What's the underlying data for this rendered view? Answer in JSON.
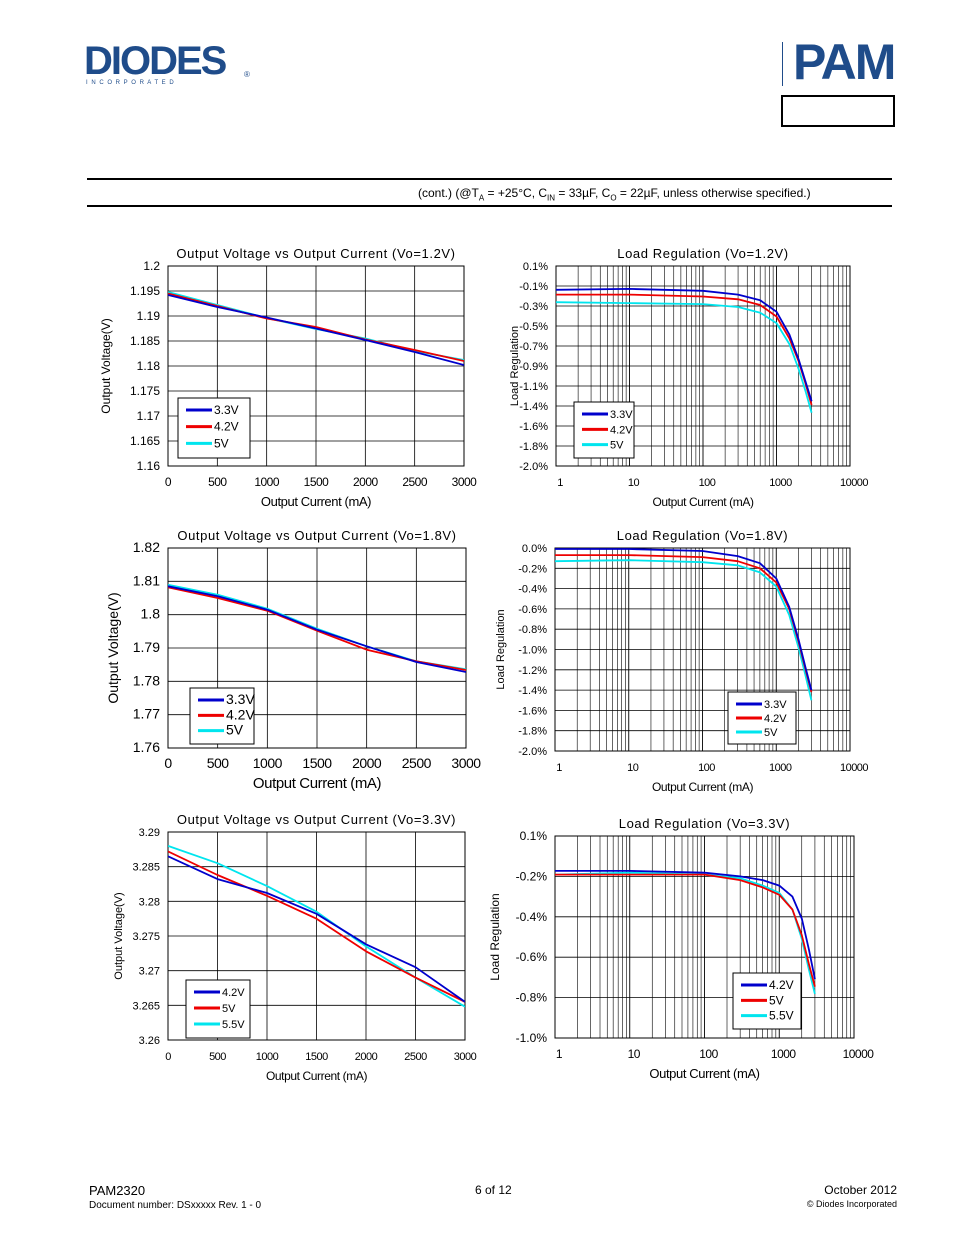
{
  "header": {
    "brand_text": "DIODES",
    "brand_subtext": "I N C O R P O R A T E D",
    "registered": "®",
    "pam_logo_text": "PAM",
    "colors": {
      "brand_blue": "#1f4c8a"
    }
  },
  "conditions": {
    "prefix": "(cont.) (@T",
    "ta_sub": "A",
    "mid1": " = +25°C, C",
    "cin_sub": "IN",
    "mid2": " = 33µF, C",
    "co_sub": "O",
    "suffix": " = 22µF, unless otherwise specified.)"
  },
  "footer": {
    "part": "PAM2320",
    "doc": "Document number: DSxxxxx Rev. 1 - 0",
    "page": "6 of 12",
    "date": "October 2012",
    "copyright": "© Diodes Incorporated"
  },
  "chart_data": [
    {
      "id": "c1",
      "type": "line",
      "title": "Output Voltage vs Output Current (Vo=1.2V)",
      "xlabel": "Output Current (mA)",
      "ylabel": "Output Voltage(V)",
      "xscale": "linear",
      "xlim": [
        0,
        3000
      ],
      "ylim": [
        1.16,
        1.2
      ],
      "xticks": [
        0,
        500,
        1000,
        1500,
        2000,
        2500,
        3000
      ],
      "xtick_labels": [
        "0",
        "500",
        "1000",
        "1500",
        "2000",
        "2500",
        "3000"
      ],
      "yticks": [
        1.2,
        1.195,
        1.19,
        1.185,
        1.18,
        1.175,
        1.17,
        1.165,
        1.16
      ],
      "ytick_labels": [
        "1.2",
        "1.195",
        "1.19",
        "1.185",
        "1.18",
        "1.175",
        "1.17",
        "1.165",
        "1.16"
      ],
      "grid": true,
      "legend_position": "bottom-left",
      "series": [
        {
          "name": "3.3V",
          "color": "#0000cc",
          "x": [
            0,
            500,
            1000,
            1500,
            2000,
            2500,
            3000
          ],
          "y": [
            1.1942,
            1.1918,
            1.1897,
            1.1875,
            1.1852,
            1.1828,
            1.1802
          ]
        },
        {
          "name": "4.2V",
          "color": "#ee0000",
          "x": [
            0,
            500,
            1000,
            1500,
            2000,
            2500,
            3000
          ],
          "y": [
            1.1945,
            1.192,
            1.1895,
            1.1878,
            1.1853,
            1.1832,
            1.181
          ]
        },
        {
          "name": "5V",
          "color": "#00e5ee",
          "x": [
            0,
            500,
            1000,
            1500,
            2000,
            2500,
            3000
          ],
          "y": [
            1.1948,
            1.1922,
            1.1896,
            1.1874,
            1.1855,
            1.183,
            1.1812
          ]
        }
      ]
    },
    {
      "id": "c2",
      "type": "line",
      "title": "Load Regulation (Vo=1.2V)",
      "xlabel": "Output Current (mA)",
      "ylabel": "Load Regulation",
      "xscale": "log",
      "xlim": [
        1,
        10000
      ],
      "ylim": [
        -2.0,
        0.1
      ],
      "xticks": [
        1,
        10,
        100,
        1000,
        10000
      ],
      "xtick_labels": [
        "1",
        "10",
        "100",
        "1000",
        "10000"
      ],
      "yticks": [
        0.1,
        -0.1,
        -0.3,
        -0.5,
        -0.7,
        -0.9,
        -1.1,
        -1.4,
        -1.6,
        -1.8,
        -2.0
      ],
      "ytick_labels": [
        "0.1%",
        "-0.1%",
        "-0.3%",
        "-0.5%",
        "-0.7%",
        "-0.9%",
        "-1.1%",
        "-1.4%",
        "-1.6%",
        "-1.8%",
        "-2.0%"
      ],
      "grid": true,
      "legend_position": "bottom-left",
      "series": [
        {
          "name": "3.3V",
          "color": "#0000cc",
          "x": [
            1,
            10,
            100,
            300,
            600,
            1000,
            1500,
            2000,
            2500,
            3000
          ],
          "y": [
            -0.15,
            -0.14,
            -0.16,
            -0.2,
            -0.26,
            -0.38,
            -0.62,
            -0.88,
            -1.12,
            -1.32
          ]
        },
        {
          "name": "4.2V",
          "color": "#ee0000",
          "x": [
            1,
            10,
            100,
            300,
            600,
            1000,
            1500,
            2000,
            2500,
            3000
          ],
          "y": [
            -0.2,
            -0.2,
            -0.22,
            -0.25,
            -0.31,
            -0.43,
            -0.66,
            -0.9,
            -1.14,
            -1.36
          ]
        },
        {
          "name": "5V",
          "color": "#00e5ee",
          "x": [
            1,
            10,
            100,
            300,
            600,
            1000,
            1500,
            2000,
            2500,
            3000
          ],
          "y": [
            -0.28,
            -0.29,
            -0.3,
            -0.33,
            -0.39,
            -0.5,
            -0.72,
            -0.98,
            -1.22,
            -1.44
          ]
        }
      ]
    },
    {
      "id": "c3",
      "type": "line",
      "title": "Output Voltage vs Output Current (Vo=1.8V)",
      "xlabel": "Output Current (mA)",
      "ylabel": "Output Voltage(V)",
      "xscale": "linear",
      "xlim": [
        0,
        3000
      ],
      "ylim": [
        1.76,
        1.82
      ],
      "xticks": [
        0,
        500,
        1000,
        1500,
        2000,
        2500,
        3000
      ],
      "xtick_labels": [
        "0",
        "500",
        "1000",
        "1500",
        "2000",
        "2500",
        "3000"
      ],
      "yticks": [
        1.82,
        1.81,
        1.8,
        1.79,
        1.78,
        1.77,
        1.76
      ],
      "ytick_labels": [
        "1.82",
        "1.81",
        "1.8",
        "1.79",
        "1.78",
        "1.77",
        "1.76"
      ],
      "grid": true,
      "legend_position": "bottom-left",
      "series": [
        {
          "name": "3.3V",
          "color": "#0000cc",
          "x": [
            0,
            500,
            1000,
            1500,
            2000,
            2500,
            3000
          ],
          "y": [
            1.8085,
            1.8055,
            1.8015,
            1.7955,
            1.7905,
            1.7858,
            1.7828
          ]
        },
        {
          "name": "4.2V",
          "color": "#ee0000",
          "x": [
            0,
            500,
            1000,
            1500,
            2000,
            2500,
            3000
          ],
          "y": [
            1.8082,
            1.805,
            1.8012,
            1.7952,
            1.7895,
            1.786,
            1.7834
          ]
        },
        {
          "name": "5V",
          "color": "#00e5ee",
          "x": [
            0,
            500,
            1000,
            1500,
            2000,
            2500,
            3000
          ],
          "y": [
            1.809,
            1.806,
            1.8018,
            1.7958,
            1.7905,
            1.786,
            1.7836
          ]
        }
      ]
    },
    {
      "id": "c4",
      "type": "line",
      "title": "Load Regulation (Vo=1.8V)",
      "xlabel": "Output Current (mA)",
      "ylabel": "Load Regulation",
      "xscale": "log",
      "xlim": [
        1,
        10000
      ],
      "ylim": [
        -2.0,
        0.0
      ],
      "xticks": [
        1,
        10,
        100,
        1000,
        10000
      ],
      "xtick_labels": [
        "1",
        "10",
        "100",
        "1000",
        "10000"
      ],
      "yticks": [
        0.0,
        -0.2,
        -0.4,
        -0.6,
        -0.8,
        -1.0,
        -1.2,
        -1.4,
        -1.6,
        -1.8,
        -2.0
      ],
      "ytick_labels": [
        "0.0%",
        "-0.2%",
        "-0.4%",
        "-0.6%",
        "-0.8%",
        "-1.0%",
        "-1.2%",
        "-1.4%",
        "-1.6%",
        "-1.8%",
        "-2.0%"
      ],
      "grid": true,
      "legend_position": "bottom-right",
      "series": [
        {
          "name": "3.3V",
          "color": "#0000cc",
          "x": [
            1,
            10,
            100,
            300,
            600,
            1000,
            1500,
            2000,
            2500,
            3000
          ],
          "y": [
            -0.01,
            -0.01,
            -0.03,
            -0.08,
            -0.15,
            -0.3,
            -0.58,
            -0.9,
            -1.18,
            -1.4
          ]
        },
        {
          "name": "4.2V",
          "color": "#ee0000",
          "x": [
            1,
            10,
            100,
            300,
            600,
            1000,
            1500,
            2000,
            2500,
            3000
          ],
          "y": [
            -0.07,
            -0.07,
            -0.09,
            -0.13,
            -0.2,
            -0.34,
            -0.6,
            -0.92,
            -1.2,
            -1.42
          ]
        },
        {
          "name": "5V",
          "color": "#00e5ee",
          "x": [
            1,
            10,
            100,
            300,
            600,
            1000,
            1500,
            2000,
            2500,
            3000
          ],
          "y": [
            -0.13,
            -0.12,
            -0.14,
            -0.17,
            -0.24,
            -0.38,
            -0.66,
            -0.98,
            -1.26,
            -1.5
          ]
        }
      ]
    },
    {
      "id": "c5",
      "type": "line",
      "title": "Output Voltage vs Output Current (Vo=3.3V)",
      "xlabel": "Output Current (mA)",
      "ylabel": "Output Voltage(V)",
      "xscale": "linear",
      "xlim": [
        0,
        3000
      ],
      "ylim": [
        3.26,
        3.29
      ],
      "xticks": [
        0,
        500,
        1000,
        1500,
        2000,
        2500,
        3000
      ],
      "xtick_labels": [
        "0",
        "500",
        "1000",
        "1500",
        "2000",
        "2500",
        "3000"
      ],
      "yticks": [
        3.29,
        3.285,
        3.28,
        3.275,
        3.27,
        3.265,
        3.26
      ],
      "ytick_labels": [
        "3.29",
        "3.285",
        "3.28",
        "3.275",
        "3.27",
        "3.265",
        "3.26"
      ],
      "grid": true,
      "legend_position": "bottom-left",
      "series": [
        {
          "name": "4.2V",
          "color": "#0000cc",
          "x": [
            0,
            500,
            1000,
            1500,
            2000,
            2500,
            3000
          ],
          "y": [
            3.2865,
            3.2832,
            3.2812,
            3.2782,
            3.2738,
            3.2705,
            3.2655
          ]
        },
        {
          "name": "5V",
          "color": "#ee0000",
          "x": [
            0,
            500,
            1000,
            1500,
            2000,
            2500,
            3000
          ],
          "y": [
            3.2872,
            3.2838,
            3.2808,
            3.2775,
            3.2728,
            3.269,
            3.2655
          ]
        },
        {
          "name": "5.5V",
          "color": "#00e5ee",
          "x": [
            0,
            500,
            1000,
            1500,
            2000,
            2500,
            3000
          ],
          "y": [
            3.288,
            3.2855,
            3.2822,
            3.2785,
            3.2735,
            3.269,
            3.2648
          ]
        }
      ]
    },
    {
      "id": "c6",
      "type": "line",
      "title": "Load Regulation (Vo=3.3V)",
      "xlabel": "Output Current (mA)",
      "ylabel": "Load Regulation",
      "xscale": "log",
      "xlim": [
        1,
        10000
      ],
      "ylim": [
        -1.0,
        0.1
      ],
      "xticks": [
        1,
        10,
        100,
        1000,
        10000
      ],
      "xtick_labels": [
        "1",
        "10",
        "100",
        "1000",
        "10000"
      ],
      "yticks": [
        0.1,
        -0.2,
        -0.4,
        -0.6,
        -0.8,
        -1.0
      ],
      "ytick_labels": [
        "0.1%",
        "-0.2%",
        "-0.4%",
        "-0.6%",
        "-0.8%",
        "-1.0%"
      ],
      "grid": true,
      "legend_position": "bottom-right",
      "series": [
        {
          "name": "4.2V",
          "color": "#0000cc",
          "x": [
            1,
            10,
            100,
            300,
            600,
            1000,
            1500,
            2000,
            2500,
            3000
          ],
          "y": [
            -0.09,
            -0.09,
            -0.1,
            -0.12,
            -0.14,
            -0.17,
            -0.23,
            -0.35,
            -0.52,
            -0.68
          ]
        },
        {
          "name": "5V",
          "color": "#ee0000",
          "x": [
            1,
            10,
            100,
            300,
            600,
            1000,
            1500,
            2000,
            2500,
            3000
          ],
          "y": [
            -0.11,
            -0.11,
            -0.11,
            -0.14,
            -0.18,
            -0.22,
            -0.3,
            -0.44,
            -0.6,
            -0.72
          ]
        },
        {
          "name": "5.5V",
          "color": "#00e5ee",
          "x": [
            1,
            10,
            100,
            300,
            600,
            1000,
            1500,
            2000,
            2500,
            3000
          ],
          "y": [
            -0.11,
            -0.1,
            -0.11,
            -0.13,
            -0.17,
            -0.21,
            -0.3,
            -0.46,
            -0.63,
            -0.76
          ]
        }
      ]
    }
  ]
}
